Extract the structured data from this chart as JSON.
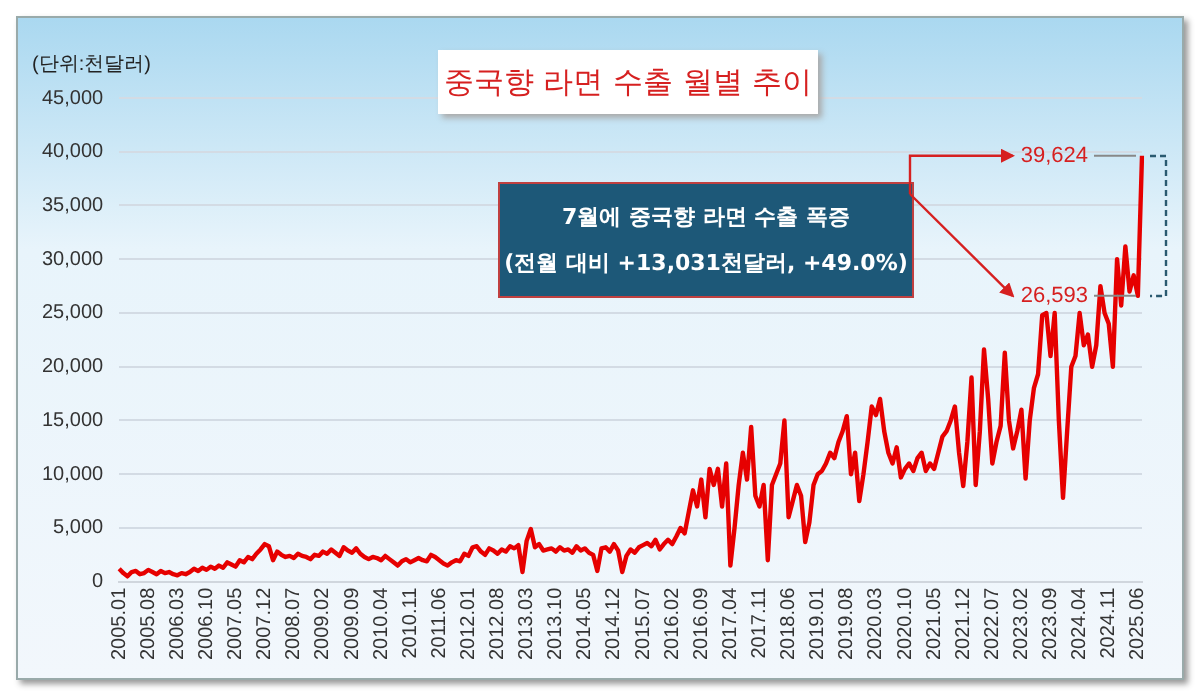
{
  "chart_data": {
    "type": "line",
    "title": "중국향 라면 수출 월별 추이",
    "ylabel": "(단위:천달러)",
    "categories": [
      "2005.01",
      null,
      null,
      null,
      null,
      null,
      null,
      "2005.08",
      null,
      null,
      null,
      null,
      null,
      null,
      "2006.03",
      null,
      null,
      null,
      null,
      null,
      null,
      "2006.10",
      null,
      null,
      null,
      null,
      null,
      null,
      "2007.05",
      null,
      null,
      null,
      null,
      null,
      null,
      "2007.12",
      null,
      null,
      null,
      null,
      null,
      null,
      "2008.07",
      null,
      null,
      null,
      null,
      null,
      null,
      "2009.02",
      null,
      null,
      null,
      null,
      null,
      null,
      "2009.09",
      null,
      null,
      null,
      null,
      null,
      null,
      "2010.04",
      null,
      null,
      null,
      null,
      null,
      null,
      "2010.11",
      null,
      null,
      null,
      null,
      null,
      null,
      "2011.06",
      null,
      null,
      null,
      null,
      null,
      null,
      "2012.01",
      null,
      null,
      null,
      null,
      null,
      null,
      "2012.08",
      null,
      null,
      null,
      null,
      null,
      null,
      "2013.03",
      null,
      null,
      null,
      null,
      null,
      null,
      "2013.10",
      null,
      null,
      null,
      null,
      null,
      null,
      "2014.05",
      null,
      null,
      null,
      null,
      null,
      null,
      "2014.12",
      null,
      null,
      null,
      null,
      null,
      null,
      "2015.07",
      null,
      null,
      null,
      null,
      null,
      null,
      "2016.02",
      null,
      null,
      null,
      null,
      null,
      null,
      "2016.09",
      null,
      null,
      null,
      null,
      null,
      null,
      "2017.04",
      null,
      null,
      null,
      null,
      null,
      null,
      "2017.11",
      null,
      null,
      null,
      null,
      null,
      null,
      "2018.06",
      null,
      null,
      null,
      null,
      null,
      null,
      "2019.01",
      null,
      null,
      null,
      null,
      null,
      null,
      "2019.08",
      null,
      null,
      null,
      null,
      null,
      null,
      "2020.03",
      null,
      null,
      null,
      null,
      null,
      null,
      "2020.10",
      null,
      null,
      null,
      null,
      null,
      null,
      "2021.05",
      null,
      null,
      null,
      null,
      null,
      null,
      "2021.12",
      null,
      null,
      null,
      null,
      null,
      null,
      "2022.07",
      null,
      null,
      null,
      null,
      null,
      null,
      "2023.02",
      null,
      null,
      null,
      null,
      null,
      null,
      "2023.09",
      null,
      null,
      null,
      null,
      null,
      null,
      "2024.04",
      null,
      null,
      null,
      null,
      null,
      null,
      "2024.11",
      null,
      null,
      null,
      null,
      null,
      null,
      "2025.06",
      null
    ],
    "series": [
      {
        "color": "#e60000",
        "values": [
          1200,
          800,
          500,
          900,
          1000,
          700,
          800,
          1100,
          900,
          700,
          1000,
          800,
          900,
          700,
          600,
          800,
          700,
          900,
          1200,
          1000,
          1300,
          1100,
          1400,
          1200,
          1500,
          1300,
          1800,
          1600,
          1400,
          2000,
          1800,
          2300,
          2100,
          2600,
          3000,
          3500,
          3300,
          2000,
          2800,
          2500,
          2300,
          2400,
          2200,
          2600,
          2400,
          2300,
          2100,
          2500,
          2400,
          2800,
          2600,
          3000,
          2700,
          2400,
          3200,
          2900,
          2700,
          3100,
          2600,
          2300,
          2100,
          2300,
          2200,
          2000,
          2400,
          2100,
          1800,
          1500,
          1900,
          2100,
          1800,
          2000,
          2200,
          2000,
          1900,
          2500,
          2300,
          2000,
          1700,
          1500,
          1800,
          2000,
          1900,
          2600,
          2400,
          3200,
          3300,
          2800,
          2500,
          3100,
          2900,
          2600,
          3000,
          2800,
          3300,
          3100,
          3400,
          900,
          3800,
          4900,
          3200,
          3500,
          2900,
          3000,
          3100,
          2800,
          3200,
          2900,
          3000,
          2700,
          3300,
          2900,
          3100,
          2700,
          2500,
          1000,
          3100,
          3200,
          2800,
          3500,
          2900,
          900,
          2400,
          3000,
          2700,
          3200,
          3400,
          3600,
          3300,
          3900,
          3000,
          3500,
          3900,
          3500,
          4200,
          5000,
          4500,
          6500,
          8500,
          7000,
          9500,
          6000,
          10500,
          9000,
          10500,
          7000,
          11000,
          1500,
          5000,
          9000,
          12000,
          9500,
          14400,
          8000,
          7000,
          9000,
          2000,
          9000,
          10000,
          11000,
          15000,
          6000,
          7500,
          9000,
          8000,
          3700,
          5500,
          9000,
          10000,
          10300,
          11000,
          12000,
          11500,
          13000,
          14000,
          15400,
          10000,
          12000,
          7500,
          10000,
          13000,
          16300,
          15500,
          17000,
          14000,
          12000,
          11000,
          12500,
          9700,
          10500,
          11000,
          10300,
          11500,
          12000,
          10300,
          11000,
          10500,
          12000,
          13500,
          14000,
          15000,
          16300,
          12000,
          8900,
          13000,
          19000,
          9000,
          14000,
          21600,
          17000,
          11000,
          13000,
          14500,
          21300,
          15000,
          12400,
          14000,
          16000,
          9600,
          15000,
          18000,
          19300,
          24800,
          25000,
          21000,
          25000,
          15000,
          7800,
          14000,
          20000,
          21000,
          25000,
          22000,
          23000,
          20000,
          22000,
          27500,
          25000,
          24000,
          20000,
          30000,
          25700,
          31200,
          27000,
          28500,
          26593,
          39624
        ],
        "value_labels": [
          null,
          null,
          null,
          null,
          null,
          null,
          null,
          null,
          null,
          null,
          null,
          null,
          null,
          null,
          null,
          null,
          null,
          null,
          null,
          null,
          null,
          null,
          null,
          null,
          null,
          null,
          null,
          null,
          null,
          null,
          null,
          null,
          null,
          null,
          null,
          null,
          null,
          null,
          null,
          null,
          null,
          null,
          null,
          null,
          null,
          null,
          null,
          null,
          null,
          null,
          null,
          null,
          null,
          null,
          null,
          null,
          null,
          null,
          null,
          null,
          null,
          null,
          null,
          null,
          null,
          null,
          null,
          null,
          null,
          null,
          null,
          null,
          null,
          null,
          null,
          null,
          null,
          null,
          null,
          null,
          null,
          null,
          null,
          null,
          null,
          null,
          null,
          null,
          null,
          null,
          null,
          null,
          null,
          null,
          null,
          null,
          null,
          null,
          null,
          null,
          null,
          null,
          null,
          null,
          null,
          null,
          null,
          null,
          null,
          null,
          null,
          null,
          null,
          null,
          null,
          null,
          null,
          null,
          null,
          null,
          null,
          null,
          null,
          null,
          null,
          null,
          null,
          null,
          null,
          null,
          null,
          null,
          null,
          null,
          null,
          null,
          null,
          null,
          null,
          null,
          null,
          null,
          null,
          null,
          null,
          null,
          null,
          null,
          null,
          null,
          null,
          null,
          null,
          null,
          null,
          null,
          null,
          null,
          null,
          null,
          null,
          null,
          null,
          null,
          null,
          null,
          null,
          null,
          null,
          null,
          null,
          null,
          null,
          null,
          null,
          null,
          null,
          null,
          null,
          null,
          null,
          null,
          null,
          null,
          null,
          null,
          null,
          null,
          null,
          null,
          null,
          null,
          null,
          null,
          null,
          null,
          null,
          null,
          null,
          null,
          null,
          null,
          null,
          null,
          null,
          null,
          null,
          null,
          null,
          null,
          null,
          null,
          null,
          null,
          null,
          null,
          null,
          null,
          null,
          null,
          null,
          null,
          null,
          null,
          null,
          null,
          null,
          null,
          null,
          null,
          null,
          null,
          null,
          null,
          null,
          null,
          null,
          null,
          null,
          null,
          null,
          null,
          null,
          null,
          null,
          "26,593",
          "39,624"
        ]
      }
    ],
    "ylim": [
      0,
      45000
    ],
    "yticks": [
      0,
      {
        "value": 5000,
        "label": "5,000"
      },
      {
        "value": 10000,
        "label": "10,000"
      },
      {
        "value": 15000,
        "label": "15,000"
      },
      {
        "value": 20000,
        "label": "20,000"
      },
      {
        "value": 25000,
        "label": "25,000"
      },
      {
        "value": 30000,
        "label": "30,000"
      },
      {
        "value": 35000,
        "label": "35,000"
      },
      {
        "value": 40000,
        "label": "40,000"
      },
      {
        "value": 45000,
        "label": "45,000"
      }
    ],
    "grid": "y",
    "legend": false,
    "marker": "none",
    "line_style": "solid",
    "annotations": [
      "7월에 중국향 라면 수출 폭증",
      "(전월 대비 +13,031천달러, +49.0%)"
    ]
  }
}
